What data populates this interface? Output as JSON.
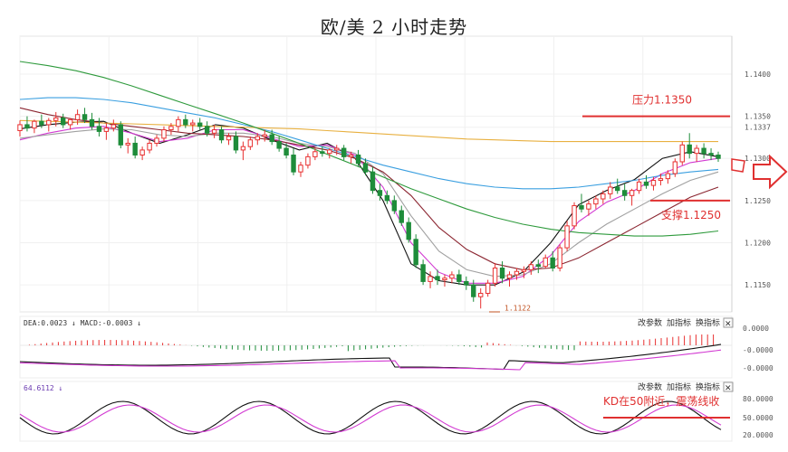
{
  "title": "欧/美 2 小时走势",
  "chart_data": {
    "type": "candlestick",
    "y_ticks": [
      "1.1400",
      "1.1350",
      "1.1337",
      "1.1300",
      "1.1250",
      "1.1200",
      "1.1150"
    ],
    "ylim": [
      1.1118,
      1.1445
    ],
    "candles": [
      [
        1.1333,
        1.1345,
        1.1326,
        1.134
      ],
      [
        1.134,
        1.135,
        1.1332,
        1.1336
      ],
      [
        1.1336,
        1.1346,
        1.133,
        1.1344
      ],
      [
        1.1344,
        1.1352,
        1.1336,
        1.134
      ],
      [
        1.134,
        1.1348,
        1.1332,
        1.1345
      ],
      [
        1.1345,
        1.1355,
        1.1338,
        1.1348
      ],
      [
        1.1348,
        1.1353,
        1.1336,
        1.134
      ],
      [
        1.134,
        1.1348,
        1.1334,
        1.1346
      ],
      [
        1.1346,
        1.1358,
        1.134,
        1.1352
      ],
      [
        1.1352,
        1.136,
        1.1342,
        1.1346
      ],
      [
        1.1346,
        1.1354,
        1.1334,
        1.1338
      ],
      [
        1.1338,
        1.1348,
        1.1326,
        1.1332
      ],
      [
        1.1332,
        1.1342,
        1.1322,
        1.1336
      ],
      [
        1.1336,
        1.1346,
        1.1332,
        1.134
      ],
      [
        1.134,
        1.1344,
        1.1312,
        1.1316
      ],
      [
        1.1316,
        1.1324,
        1.1306,
        1.1318
      ],
      [
        1.1318,
        1.1326,
        1.13,
        1.1304
      ],
      [
        1.1304,
        1.1314,
        1.1298,
        1.131
      ],
      [
        1.131,
        1.1322,
        1.1306,
        1.1318
      ],
      [
        1.1318,
        1.1328,
        1.1314,
        1.1324
      ],
      [
        1.1324,
        1.1338,
        1.132,
        1.1334
      ],
      [
        1.1334,
        1.1342,
        1.1328,
        1.1338
      ],
      [
        1.1338,
        1.135,
        1.1332,
        1.1346
      ],
      [
        1.1346,
        1.1352,
        1.1336,
        1.134
      ],
      [
        1.134,
        1.1346,
        1.1332,
        1.1342
      ],
      [
        1.1342,
        1.1348,
        1.1334,
        1.1338
      ],
      [
        1.1338,
        1.1344,
        1.1326,
        1.133
      ],
      [
        1.133,
        1.134,
        1.1324,
        1.1334
      ],
      [
        1.1334,
        1.1338,
        1.1318,
        1.1322
      ],
      [
        1.1322,
        1.133,
        1.1316,
        1.1326
      ],
      [
        1.1326,
        1.1332,
        1.1306,
        1.131
      ],
      [
        1.131,
        1.132,
        1.1298,
        1.1314
      ],
      [
        1.1314,
        1.1326,
        1.131,
        1.1322
      ],
      [
        1.1322,
        1.133,
        1.1316,
        1.1326
      ],
      [
        1.1326,
        1.1334,
        1.132,
        1.1328
      ],
      [
        1.1328,
        1.1334,
        1.1316,
        1.132
      ],
      [
        1.132,
        1.1326,
        1.1308,
        1.1312
      ],
      [
        1.1312,
        1.1318,
        1.13,
        1.1304
      ],
      [
        1.1304,
        1.1312,
        1.128,
        1.1284
      ],
      [
        1.1284,
        1.1296,
        1.1278,
        1.1292
      ],
      [
        1.1292,
        1.1306,
        1.1288,
        1.1302
      ],
      [
        1.1302,
        1.1312,
        1.1298,
        1.1308
      ],
      [
        1.1308,
        1.1314,
        1.1302,
        1.1306
      ],
      [
        1.1306,
        1.1312,
        1.13,
        1.131
      ],
      [
        1.131,
        1.1316,
        1.1304,
        1.1312
      ],
      [
        1.1312,
        1.1316,
        1.1298,
        1.1302
      ],
      [
        1.1302,
        1.1308,
        1.1294,
        1.1304
      ],
      [
        1.1304,
        1.131,
        1.129,
        1.1294
      ],
      [
        1.1294,
        1.13,
        1.128,
        1.1284
      ],
      [
        1.1284,
        1.129,
        1.1258,
        1.1262
      ],
      [
        1.1262,
        1.127,
        1.125,
        1.1256
      ],
      [
        1.1256,
        1.1262,
        1.1246,
        1.125
      ],
      [
        1.125,
        1.1256,
        1.1234,
        1.1238
      ],
      [
        1.1238,
        1.1244,
        1.122,
        1.1224
      ],
      [
        1.1224,
        1.123,
        1.12,
        1.1204
      ],
      [
        1.1204,
        1.121,
        1.117,
        1.1174
      ],
      [
        1.1174,
        1.118,
        1.115,
        1.1154
      ],
      [
        1.1154,
        1.1166,
        1.1146,
        1.116
      ],
      [
        1.116,
        1.1168,
        1.115,
        1.1156
      ],
      [
        1.1156,
        1.1162,
        1.1148,
        1.1158
      ],
      [
        1.1158,
        1.1166,
        1.1152,
        1.1162
      ],
      [
        1.1162,
        1.1168,
        1.115,
        1.1154
      ],
      [
        1.1154,
        1.116,
        1.1144,
        1.115
      ],
      [
        1.115,
        1.1156,
        1.113,
        1.1136
      ],
      [
        1.1136,
        1.1146,
        1.1122,
        1.114
      ],
      [
        1.114,
        1.1156,
        1.1136,
        1.1152
      ],
      [
        1.1152,
        1.1176,
        1.1148,
        1.117
      ],
      [
        1.117,
        1.1178,
        1.1152,
        1.1158
      ],
      [
        1.1158,
        1.1166,
        1.1148,
        1.1162
      ],
      [
        1.1162,
        1.117,
        1.1156,
        1.1166
      ],
      [
        1.1166,
        1.1172,
        1.1158,
        1.1168
      ],
      [
        1.1168,
        1.1178,
        1.1162,
        1.1174
      ],
      [
        1.1174,
        1.118,
        1.1164,
        1.1172
      ],
      [
        1.1172,
        1.1186,
        1.117,
        1.1182
      ],
      [
        1.1182,
        1.119,
        1.1166,
        1.117
      ],
      [
        1.117,
        1.1198,
        1.1166,
        1.1194
      ],
      [
        1.1194,
        1.1226,
        1.119,
        1.122
      ],
      [
        1.122,
        1.1248,
        1.1216,
        1.1244
      ],
      [
        1.1244,
        1.1258,
        1.1236,
        1.124
      ],
      [
        1.124,
        1.125,
        1.1232,
        1.1246
      ],
      [
        1.1246,
        1.1256,
        1.124,
        1.1252
      ],
      [
        1.1252,
        1.1262,
        1.1246,
        1.1258
      ],
      [
        1.1258,
        1.1272,
        1.1252,
        1.1266
      ],
      [
        1.1266,
        1.1276,
        1.1258,
        1.1262
      ],
      [
        1.1262,
        1.127,
        1.125,
        1.1256
      ],
      [
        1.1256,
        1.1264,
        1.1244,
        1.1262
      ],
      [
        1.1262,
        1.1276,
        1.1258,
        1.1272
      ],
      [
        1.1272,
        1.128,
        1.1264,
        1.1268
      ],
      [
        1.1268,
        1.1278,
        1.1262,
        1.1274
      ],
      [
        1.1274,
        1.1282,
        1.1268,
        1.1276
      ],
      [
        1.1276,
        1.1286,
        1.127,
        1.1282
      ],
      [
        1.1282,
        1.13,
        1.1278,
        1.1296
      ],
      [
        1.1296,
        1.132,
        1.1292,
        1.1316
      ],
      [
        1.1316,
        1.133,
        1.13,
        1.1306
      ],
      [
        1.1306,
        1.1316,
        1.1296,
        1.1312
      ],
      [
        1.1312,
        1.1318,
        1.13,
        1.1306
      ],
      [
        1.1306,
        1.1312,
        1.1298,
        1.1304
      ],
      [
        1.1304,
        1.1308,
        1.1296,
        1.13
      ]
    ],
    "moving_averages": [
      {
        "color": "#111111",
        "values": [
          1.1335,
          1.134,
          1.1343,
          1.1344,
          1.133,
          1.1318,
          1.1328,
          1.134,
          1.1336,
          1.1322,
          1.131,
          1.1318,
          1.13,
          1.125,
          1.1175,
          1.1155,
          1.115,
          1.115,
          1.1165,
          1.12,
          1.1245,
          1.1262,
          1.1275,
          1.13,
          1.1308,
          1.1302
        ]
      },
      {
        "color": "#d23ad2",
        "values": [
          1.1322,
          1.133,
          1.1336,
          1.1338,
          1.133,
          1.132,
          1.1324,
          1.1334,
          1.1334,
          1.1324,
          1.1314,
          1.1316,
          1.1304,
          1.1266,
          1.12,
          1.1165,
          1.1152,
          1.1152,
          1.116,
          1.1185,
          1.1225,
          1.1248,
          1.1262,
          1.1282,
          1.1295,
          1.13
        ]
      },
      {
        "color": "#a0a0a0",
        "values": [
          1.1324,
          1.1328,
          1.1332,
          1.1335,
          1.1334,
          1.1328,
          1.1326,
          1.133,
          1.133,
          1.1326,
          1.1318,
          1.1314,
          1.1306,
          1.1282,
          1.1232,
          1.119,
          1.1168,
          1.116,
          1.1162,
          1.1175,
          1.12,
          1.1222,
          1.124,
          1.1258,
          1.1274,
          1.1284
        ]
      },
      {
        "color": "#8b2530",
        "values": [
          1.136,
          1.1352,
          1.1346,
          1.1342,
          1.1338,
          1.1334,
          1.133,
          1.1328,
          1.1326,
          1.1322,
          1.1316,
          1.131,
          1.13,
          1.1284,
          1.1256,
          1.1218,
          1.1192,
          1.1175,
          1.1168,
          1.117,
          1.1182,
          1.12,
          1.1218,
          1.1236,
          1.1254,
          1.1266
        ]
      },
      {
        "color": "#3a9fe0",
        "values": [
          1.137,
          1.1372,
          1.1372,
          1.137,
          1.1366,
          1.136,
          1.1354,
          1.1348,
          1.134,
          1.1332,
          1.1322,
          1.1312,
          1.1302,
          1.1292,
          1.1284,
          1.1276,
          1.127,
          1.1266,
          1.1264,
          1.1264,
          1.1266,
          1.127,
          1.1274,
          1.128,
          1.1284,
          1.1287
        ]
      },
      {
        "color": "#e8b040",
        "values": [
          1.1345,
          1.1344,
          1.1343,
          1.1342,
          1.1341,
          1.134,
          1.1339,
          1.1338,
          1.1337,
          1.1336,
          1.1335,
          1.1333,
          1.1331,
          1.1329,
          1.1327,
          1.1325,
          1.1323,
          1.1322,
          1.1321,
          1.132,
          1.132,
          1.132,
          1.132,
          1.132,
          1.132,
          1.132
        ]
      },
      {
        "color": "#2e9a3c",
        "values": [
          1.1415,
          1.141,
          1.1404,
          1.1396,
          1.1386,
          1.1375,
          1.1364,
          1.1353,
          1.1342,
          1.133,
          1.1318,
          1.1305,
          1.1292,
          1.1278,
          1.1264,
          1.1252,
          1.124,
          1.123,
          1.1222,
          1.1216,
          1.1212,
          1.121,
          1.1208,
          1.1208,
          1.121,
          1.1214
        ]
      }
    ],
    "annotations": {
      "resistance": {
        "label": "压力1.1350",
        "value": 1.135
      },
      "support": {
        "label": "支撑1.1250",
        "value": 1.125
      },
      "low_label": "1.1122",
      "kd_note": "KD在50附近，震荡线收"
    },
    "macd_panel": {
      "header": "DEA:0.0023 ↓ MACD:-0.0003 ↓",
      "y_ticks": [
        "0.0000",
        "-0.0000",
        "-0.0000"
      ],
      "controls": [
        "改参数",
        "加指标",
        "换指标",
        "✕"
      ]
    },
    "kd_panel": {
      "header": "64.6112 ↓",
      "y_ticks": [
        "80.0000",
        "50.0000",
        "20.0000"
      ],
      "controls": [
        "改参数",
        "加指标",
        "换指标",
        "✕"
      ]
    }
  },
  "colors": {
    "up": "#e83030",
    "down": "#1e8c3a",
    "annotation": "#e03030",
    "arrow": "#e03030"
  }
}
